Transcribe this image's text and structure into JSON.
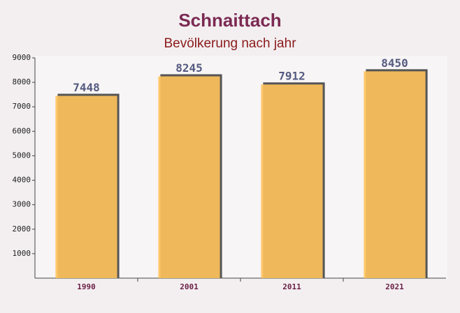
{
  "chart_data": {
    "type": "bar",
    "title": "Schnaittach",
    "subtitle": "Bevölkerung nach jahr",
    "categories": [
      "1990",
      "2001",
      "2011",
      "2021"
    ],
    "values": [
      7448,
      8245,
      7912,
      8450
    ],
    "color": "#ffc35c",
    "ylim": [
      0,
      9000
    ],
    "yticks": [
      1000,
      2000,
      3000,
      4000,
      5000,
      6000,
      7000,
      8000,
      9000
    ],
    "grid": false
  }
}
